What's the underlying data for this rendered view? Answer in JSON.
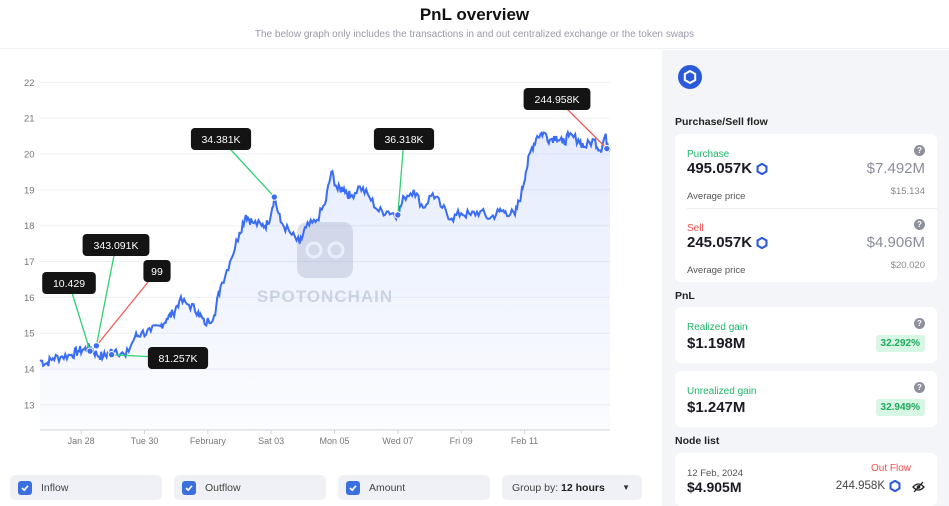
{
  "header": {
    "title": "PnL overview",
    "subtitle": "The below graph only includes the transactions in and out centralized exchange or the token swaps"
  },
  "watermark": "SPOTONCHAIN",
  "colors": {
    "line": "#3a6cf4",
    "inflow": "#2fd173",
    "outflow": "#f25a5a",
    "label_bg": "#141414"
  },
  "chart_data": {
    "type": "line",
    "title": "",
    "xlabel": "",
    "ylabel": "",
    "ylim": [
      12.3,
      22.4
    ],
    "yticks": [
      13,
      14,
      15,
      16,
      17,
      18,
      19,
      20,
      21,
      22
    ],
    "xticks": [
      {
        "x": 1.6,
        "label": "Jan 28"
      },
      {
        "x": 2.6,
        "label": "Tue 30"
      },
      {
        "x": 3.6,
        "label": "February"
      },
      {
        "x": 4.6,
        "label": "Sat 03"
      },
      {
        "x": 5.6,
        "label": "Mon 05"
      },
      {
        "x": 6.6,
        "label": "Wed 07"
      },
      {
        "x": 7.6,
        "label": "Fri 09"
      },
      {
        "x": 8.6,
        "label": "Feb 11"
      }
    ],
    "xlim": [
      0.95,
      9.95
    ],
    "price": [
      [
        0.95,
        14.25
      ],
      [
        1.05,
        14.15
      ],
      [
        1.15,
        14.3
      ],
      [
        1.3,
        14.35
      ],
      [
        1.45,
        14.4
      ],
      [
        1.55,
        14.5
      ],
      [
        1.65,
        14.55
      ],
      [
        1.75,
        14.6
      ],
      [
        1.85,
        14.4
      ],
      [
        1.95,
        14.35
      ],
      [
        2.05,
        14.45
      ],
      [
        2.15,
        14.55
      ],
      [
        2.3,
        14.35
      ],
      [
        2.45,
        14.9
      ],
      [
        2.55,
        15.0
      ],
      [
        2.7,
        15.05
      ],
      [
        2.85,
        15.2
      ],
      [
        2.95,
        15.4
      ],
      [
        3.05,
        15.55
      ],
      [
        3.15,
        15.9
      ],
      [
        3.3,
        15.8
      ],
      [
        3.45,
        15.6
      ],
      [
        3.55,
        15.25
      ],
      [
        3.7,
        15.5
      ],
      [
        3.8,
        16.3
      ],
      [
        3.95,
        17.0
      ],
      [
        4.1,
        17.8
      ],
      [
        4.2,
        18.3
      ],
      [
        4.3,
        18.1
      ],
      [
        4.45,
        18.0
      ],
      [
        4.55,
        18.05
      ],
      [
        4.65,
        18.8
      ],
      [
        4.75,
        18.1
      ],
      [
        4.9,
        17.8
      ],
      [
        5.05,
        17.5
      ],
      [
        5.15,
        17.95
      ],
      [
        5.3,
        18.1
      ],
      [
        5.45,
        18.6
      ],
      [
        5.55,
        19.5
      ],
      [
        5.65,
        19.0
      ],
      [
        5.75,
        19.05
      ],
      [
        5.85,
        18.8
      ],
      [
        6.0,
        19.1
      ],
      [
        6.15,
        18.8
      ],
      [
        6.3,
        18.4
      ],
      [
        6.45,
        18.4
      ],
      [
        6.6,
        18.3
      ],
      [
        6.7,
        18.8
      ],
      [
        6.85,
        19.0
      ],
      [
        7.0,
        18.5
      ],
      [
        7.15,
        18.9
      ],
      [
        7.3,
        18.5
      ],
      [
        7.45,
        18.2
      ],
      [
        7.6,
        18.35
      ],
      [
        7.75,
        18.3
      ],
      [
        7.9,
        18.4
      ],
      [
        8.05,
        18.2
      ],
      [
        8.2,
        18.4
      ],
      [
        8.3,
        18.4
      ],
      [
        8.45,
        18.3
      ],
      [
        8.55,
        18.9
      ],
      [
        8.62,
        19.5
      ],
      [
        8.7,
        20.1
      ],
      [
        8.8,
        20.5
      ],
      [
        8.9,
        20.6
      ],
      [
        9.0,
        20.4
      ],
      [
        9.1,
        20.5
      ],
      [
        9.2,
        20.3
      ],
      [
        9.3,
        20.5
      ],
      [
        9.45,
        20.4
      ],
      [
        9.55,
        20.2
      ],
      [
        9.7,
        20.4
      ],
      [
        9.8,
        20.1
      ],
      [
        9.87,
        20.5
      ],
      [
        9.95,
        20.15
      ]
    ],
    "transactions": [
      {
        "label": "10.429",
        "x": 1.74,
        "y": 14.5,
        "type": "inflow"
      },
      {
        "label": "343.091K",
        "x": 1.84,
        "y": 14.65,
        "type": "inflow"
      },
      {
        "label": "99",
        "x": 1.84,
        "y": 14.65,
        "type": "outflow"
      },
      {
        "label": "81.257K",
        "x": 2.08,
        "y": 14.4,
        "type": "inflow"
      },
      {
        "label": "34.381K",
        "x": 4.65,
        "y": 18.8,
        "type": "inflow"
      },
      {
        "label": "36.318K",
        "x": 6.6,
        "y": 18.3,
        "type": "inflow"
      },
      {
        "label": "244.958K",
        "x": 9.9,
        "y": 20.15,
        "type": "outflow"
      }
    ]
  },
  "controls": {
    "inflow": "Inflow",
    "outflow": "Outflow",
    "amount": "Amount",
    "group_by_label": "Group by:",
    "group_by_value": "12 hours"
  },
  "panel": {
    "purchase_sell_title": "Purchase/Sell flow",
    "purchase": {
      "label": "Purchase",
      "amount": "495.057K",
      "usd": "$7.492M",
      "avg_label": "Average price",
      "avg": "$15.134"
    },
    "sell": {
      "label": "Sell",
      "amount": "245.057K",
      "usd": "$4.906M",
      "avg_label": "Average price",
      "avg": "$20.020"
    },
    "pnl_title": "PnL",
    "realized": {
      "label": "Realized gain",
      "value": "$1.198M",
      "pct": "32.292%"
    },
    "unrealized": {
      "label": "Unrealized gain",
      "value": "$1.247M",
      "pct": "32.949%"
    },
    "node_title": "Node list",
    "node": {
      "date": "12 Feb, 2024",
      "type": "Out Flow",
      "value": "$4.905M",
      "amount": "244.958K"
    }
  }
}
